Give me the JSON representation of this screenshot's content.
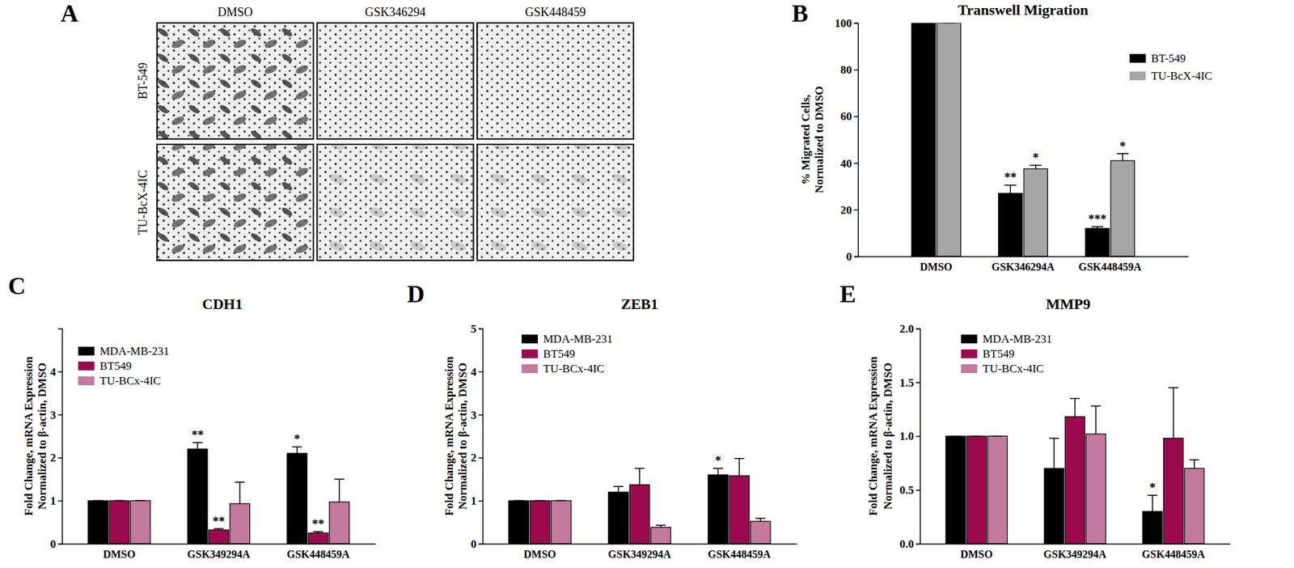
{
  "chart_data": [
    {
      "type": "image_grid",
      "annotations": [
        "A"
      ],
      "columns": [
        "DMSO",
        "GSK346294",
        "GSK448459"
      ],
      "rows": [
        "BT-549",
        "TU-BcX-4IC"
      ]
    },
    {
      "type": "bar",
      "annotations": [
        "B"
      ],
      "title": "Transwell Migration",
      "ylabel": [
        "% Migrated Cells,",
        "Normalized to DMSO"
      ],
      "categories": [
        "DMSO",
        "GSK346294A",
        "GSK448459A"
      ],
      "series": [
        {
          "name": "BT-549",
          "color": "#000000",
          "values": [
            100,
            27,
            12
          ],
          "errors": [
            0,
            3.5,
            0.7
          ],
          "significance": [
            null,
            "**",
            "***"
          ]
        },
        {
          "name": "TU-BcX-4IC",
          "color": "#a6a6a6",
          "values": [
            100,
            37.5,
            41
          ],
          "errors": [
            0,
            1.5,
            3
          ],
          "significance": [
            null,
            "*",
            "*"
          ]
        }
      ],
      "ylim": [
        0,
        100
      ],
      "yticks": [
        0,
        20,
        40,
        60,
        80,
        100
      ],
      "legend": "top-right"
    },
    {
      "type": "bar",
      "annotations": [
        "C"
      ],
      "title": "CDH1",
      "ylabel": [
        "Fold Change, mRNA Expression",
        "Normalized to β-actin, DMSO"
      ],
      "categories": [
        "DMSO",
        "GSK349294A",
        "GSK448459A"
      ],
      "series": [
        {
          "name": "MDA-MB-231",
          "color": "#000000",
          "values": [
            1,
            2.2,
            2.1
          ],
          "errors": [
            0,
            0.15,
            0.15
          ],
          "significance": [
            null,
            "**",
            "*"
          ]
        },
        {
          "name": "BT549",
          "color": "#9b0a4f",
          "values": [
            1,
            0.32,
            0.25
          ],
          "errors": [
            0,
            0.03,
            0.03
          ],
          "significance": [
            null,
            "**",
            "**"
          ]
        },
        {
          "name": "TU-BCx-4IC",
          "color": "#c47a9c",
          "values": [
            1,
            0.93,
            0.97
          ],
          "errors": [
            0,
            0.5,
            0.53
          ],
          "significance": [
            null,
            null,
            null
          ]
        }
      ],
      "ylim": [
        0,
        5
      ],
      "yticks": [
        0,
        1,
        2,
        3,
        4
      ],
      "legend": "top-left"
    },
    {
      "type": "bar",
      "annotations": [
        "D"
      ],
      "title": "ZEB1",
      "ylabel": [
        "Fold Change, mRNA Expression",
        "Normalized to β-actin, DMSO"
      ],
      "categories": [
        "DMSO",
        "GSK349294A",
        "GSK448459A"
      ],
      "series": [
        {
          "name": "MDA-MB-231",
          "color": "#000000",
          "values": [
            1,
            1.2,
            1.6
          ],
          "errors": [
            0,
            0.13,
            0.15
          ],
          "significance": [
            null,
            null,
            "*"
          ]
        },
        {
          "name": "BT549",
          "color": "#9b0a4f",
          "values": [
            1,
            1.37,
            1.58
          ],
          "errors": [
            0,
            0.38,
            0.4
          ],
          "significance": [
            null,
            null,
            null
          ]
        },
        {
          "name": "TU-BCx-4IC",
          "color": "#c47a9c",
          "values": [
            1,
            0.38,
            0.52
          ],
          "errors": [
            0,
            0.05,
            0.07
          ],
          "significance": [
            null,
            null,
            null
          ]
        }
      ],
      "ylim": [
        0,
        5
      ],
      "yticks": [
        0,
        1,
        2,
        3,
        4,
        5
      ],
      "legend": "top-left"
    },
    {
      "type": "bar",
      "annotations": [
        "E"
      ],
      "title": "MMP9",
      "ylabel": [
        "Fold Change, mRNA Expression",
        "Normalized to β-actin, DMSO"
      ],
      "categories": [
        "DMSO",
        "GSK349294A",
        "GSK448459A"
      ],
      "series": [
        {
          "name": "MDA-MB-231",
          "color": "#000000",
          "values": [
            1,
            0.7,
            0.3
          ],
          "errors": [
            0,
            0.28,
            0.15
          ],
          "significance": [
            null,
            null,
            "*"
          ]
        },
        {
          "name": "BT549",
          "color": "#9b0a4f",
          "values": [
            1,
            1.18,
            0.98
          ],
          "errors": [
            0,
            0.17,
            0.47
          ],
          "significance": [
            null,
            null,
            null
          ]
        },
        {
          "name": "TU-BCx-4IC",
          "color": "#c47a9c",
          "values": [
            1,
            1.02,
            0.7
          ],
          "errors": [
            0,
            0.26,
            0.08
          ],
          "significance": [
            null,
            null,
            null
          ]
        }
      ],
      "ylim": [
        0,
        2
      ],
      "yticks": [
        {
          "value": 0,
          "label": "0.0"
        },
        {
          "value": 0.5,
          "label": "0.5"
        },
        {
          "value": 1,
          "label": "1.0"
        },
        {
          "value": 1.5,
          "label": "1.5"
        },
        {
          "value": 2,
          "label": "2.0"
        }
      ],
      "legend": "top-left"
    }
  ]
}
